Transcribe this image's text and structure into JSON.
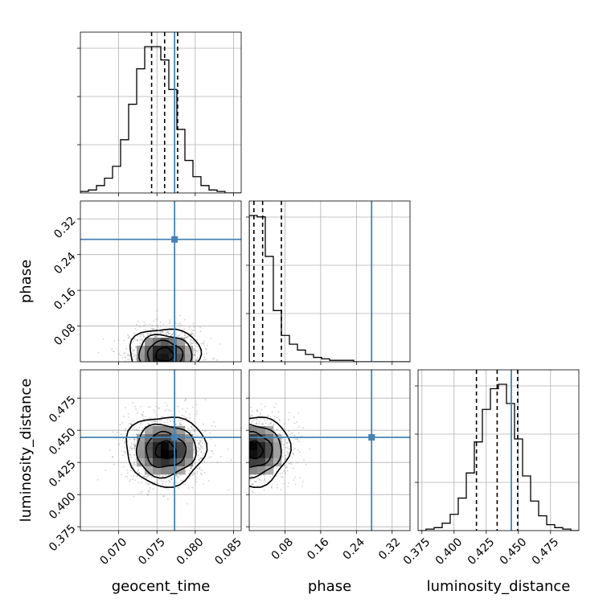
{
  "chart_data": {
    "type": "corner",
    "parameters": [
      {
        "name": "geocent_time",
        "range": [
          0.065,
          0.086
        ],
        "truth": 0.0773,
        "quantiles": [
          0.0743,
          0.076,
          0.0777
        ],
        "ticks": [
          0.07,
          0.075,
          0.08,
          0.085
        ],
        "tick_labels": [
          "0.070",
          "0.075",
          "0.080",
          "0.085"
        ]
      },
      {
        "name": "phase",
        "range": [
          0.0,
          0.36
        ],
        "truth": 0.274,
        "quantiles": [
          0.0105,
          0.03,
          0.072
        ],
        "ticks": [
          0.08,
          0.16,
          0.24,
          0.32
        ],
        "tick_labels": [
          "0.08",
          "0.16",
          "0.24",
          "0.32"
        ]
      },
      {
        "name": "luminosity_distance",
        "range": [
          0.372,
          0.497
        ],
        "truth": 0.4445,
        "quantiles": [
          0.4174,
          0.4335,
          0.4494
        ],
        "ticks": [
          0.375,
          0.4,
          0.425,
          0.45,
          0.475
        ],
        "tick_labels": [
          "0.375",
          "0.400",
          "0.425",
          "0.450",
          "0.475"
        ]
      }
    ],
    "histograms": [
      {
        "param": "geocent_time",
        "range": [
          0.065,
          0.086
        ],
        "counts": [
          1,
          2,
          5,
          10,
          18,
          36,
          60,
          84,
          99,
          99,
          90,
          70,
          43,
          22,
          11,
          5,
          2,
          1,
          0,
          0
        ]
      },
      {
        "param": "phase",
        "range": [
          0.0,
          0.36
        ],
        "counts": [
          100,
          99,
          72,
          35,
          18,
          12,
          8,
          5,
          3,
          2,
          1,
          1,
          1,
          0,
          0,
          0,
          0,
          0,
          0,
          0
        ]
      },
      {
        "param": "luminosity_distance",
        "range": [
          0.372,
          0.497
        ],
        "counts": [
          0,
          1,
          2,
          5,
          11,
          22,
          39,
          60,
          82,
          96,
          99,
          86,
          62,
          37,
          20,
          10,
          4,
          2,
          1,
          0
        ]
      }
    ],
    "densities": [
      {
        "x": "geocent_time",
        "y": "phase",
        "mean": [
          0.076,
          0.016
        ],
        "sd": [
          0.0023,
          0.03
        ]
      },
      {
        "x": "geocent_time",
        "y": "luminosity_distance",
        "mean": [
          0.0761,
          0.4345
        ],
        "sd": [
          0.0026,
          0.0135
        ]
      },
      {
        "x": "phase",
        "y": "luminosity_distance",
        "mean": [
          0.01,
          0.4345
        ],
        "sd": [
          0.04,
          0.0135
        ]
      }
    ],
    "grid": true,
    "truth_color": "#4682b4",
    "line_color": "#000000"
  }
}
